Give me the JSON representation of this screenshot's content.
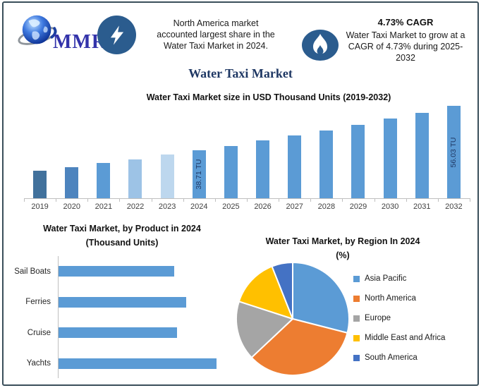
{
  "brand": {
    "logo_text": "MMR"
  },
  "header": {
    "left_callout": "North America market\naccounted largest share in the\nWater Taxi Market in 2024.",
    "cagr_heading": "4.73% CAGR",
    "cagr_text": "Water Taxi Market to grow at a\nCAGR of 4.73% during 2025-\n2032"
  },
  "main_title": "Water Taxi Market",
  "colors": {
    "navy_title": "#1F3864",
    "badge_navy": "#2B5C8E",
    "bar_blue": "#5B9BD5",
    "axis_gray": "#BFBFBF"
  },
  "chart_data": [
    {
      "type": "bar",
      "title": "Water Taxi Market size in USD Thousand Units (2019-2032)",
      "ylabel": "USD Thousand Units",
      "unit": "TU",
      "categories": [
        "2019",
        "2020",
        "2021",
        "2022",
        "2023",
        "2024",
        "2025",
        "2026",
        "2027",
        "2028",
        "2029",
        "2030",
        "2031",
        "2032"
      ],
      "values": [
        30.7,
        32.2,
        33.7,
        35.3,
        37.0,
        38.71,
        40.5,
        42.5,
        44.5,
        46.6,
        48.8,
        51.1,
        53.5,
        56.03
      ],
      "ylim": [
        20,
        60
      ],
      "grid": false,
      "bar_colors": [
        "#41719C",
        "#4D84BE",
        "#5B9BD5",
        "#9DC3E6",
        "#BDD7EE",
        "#5B9BD5",
        "#5B9BD5",
        "#5B9BD5",
        "#5B9BD5",
        "#5B9BD5",
        "#5B9BD5",
        "#5B9BD5",
        "#5B9BD5",
        "#5B9BD5"
      ],
      "bar_labels": {
        "2024": "38.71 TU",
        "2032": "56.03 TU"
      }
    },
    {
      "type": "bar",
      "orientation": "horizontal",
      "title": "Water Taxi Market, by Product in 2024",
      "subtitle": "(Thousand Units)",
      "categories": [
        "Sail Boats",
        "Ferries",
        "Cruise",
        "Yachts"
      ],
      "values": [
        73,
        81,
        75,
        100
      ],
      "xlim": [
        0,
        100
      ],
      "bar_color": "#5B9BD5",
      "grid": false
    },
    {
      "type": "pie",
      "title": "Water Taxi Market, by Region In 2024",
      "subtitle": "(%)",
      "legend_position": "right",
      "slices": [
        {
          "label": "Asia Pacific",
          "value": 29,
          "color": "#5B9BD5"
        },
        {
          "label": "North America",
          "value": 34,
          "color": "#ED7D31"
        },
        {
          "label": "Europe",
          "value": 17,
          "color": "#A5A5A5"
        },
        {
          "label": "Middle East and Africa",
          "value": 14,
          "color": "#FFC000"
        },
        {
          "label": "South America",
          "value": 6,
          "color": "#4472C4"
        }
      ]
    }
  ]
}
